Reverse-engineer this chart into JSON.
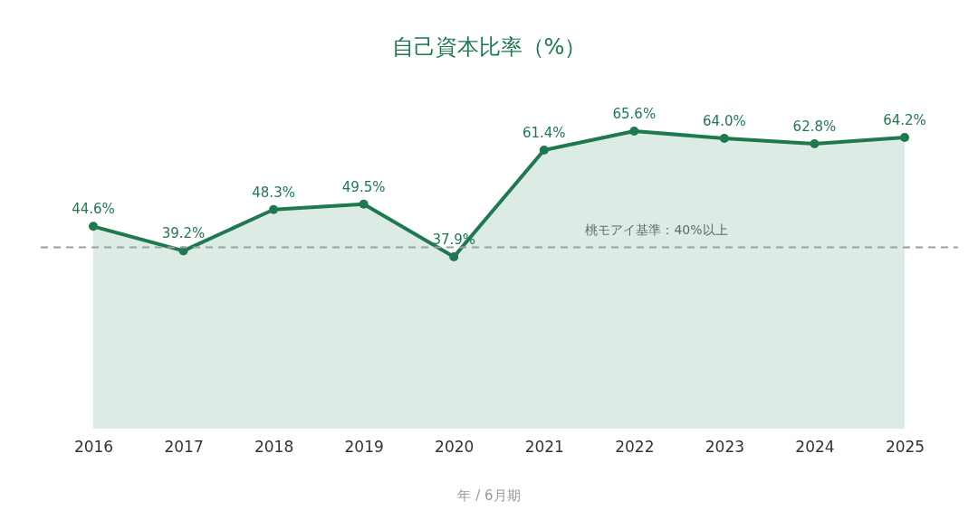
{
  "chart_data": {
    "type": "area",
    "title": "自己資本比率（%）",
    "xlabel": "年 / 6月期",
    "categories": [
      "2016",
      "2017",
      "2018",
      "2019",
      "2020",
      "2021",
      "2022",
      "2023",
      "2024",
      "2025"
    ],
    "series": [
      {
        "color": "#1e7a4e",
        "values": [
          44.6,
          39.2,
          48.3,
          49.5,
          37.9,
          61.4,
          65.6,
          64.0,
          62.8,
          64.2
        ],
        "value_labels": [
          "44.6%",
          "39.2%",
          "48.3%",
          "49.5%",
          "37.9%",
          "61.4%",
          "65.6%",
          "64.0%",
          "62.8%",
          "64.2%"
        ]
      }
    ],
    "tick_labels": "x",
    "marker": "circle",
    "line_style": "solid",
    "ref_lines": [
      {
        "axis": "y",
        "value": 40,
        "label": "桃モアイ基準：40%以上",
        "color": "#9e9e9e",
        "line_style": "dashed"
      }
    ]
  }
}
